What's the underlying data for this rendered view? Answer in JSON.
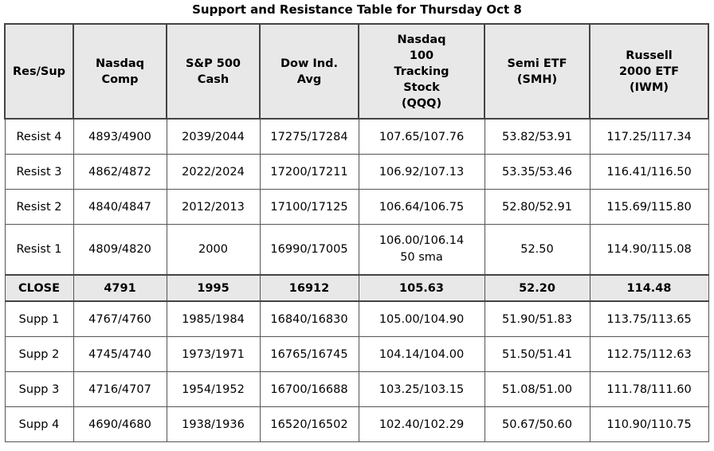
{
  "title": "Support and Resistance Table for Thursday Oct 8",
  "headers": [
    [
      "Res/Sup"
    ],
    [
      "Nasdaq",
      "Comp"
    ],
    [
      "S&P 500",
      "Cash"
    ],
    [
      "Dow Ind.",
      "Avg"
    ],
    [
      "Nasdaq",
      "100",
      "Tracking",
      "Stock",
      "(QQQ)"
    ],
    [
      "Semi ETF",
      "(SMH)"
    ],
    [
      "Russell",
      "2000 ETF",
      "(IWM)"
    ]
  ],
  "rows": [
    [
      "Resist 4",
      "4893/4900",
      "2039/2044",
      "17275/17284",
      "107.65/107.76",
      "53.82/53.91",
      "117.25/117.34"
    ],
    [
      "Resist 3",
      "4862/4872",
      "2022/2024",
      "17200/17211",
      "106.92/107.13",
      "53.35/53.46",
      "116.41/116.50"
    ],
    [
      "Resist 2",
      "4840/4847",
      "2012/2013",
      "17100/17125",
      "106.64/106.75",
      "52.80/52.91",
      "115.69/115.80"
    ],
    [
      "Resist 1",
      "4809/4820",
      "2000",
      "16990/17005",
      "106.00/106.14",
      "52.50",
      "114.90/115.08"
    ],
    [
      "CLOSE",
      "4791",
      "1995",
      "16912",
      "105.63",
      "52.20",
      "114.48"
    ],
    [
      "Supp 1",
      "4767/4760",
      "1985/1984",
      "16840/16830",
      "105.00/104.90",
      "51.90/51.83",
      "113.75/113.65"
    ],
    [
      "Supp 2",
      "4745/4740",
      "1973/1971",
      "16765/16745",
      "104.14/104.00",
      "51.50/51.41",
      "112.75/112.63"
    ],
    [
      "Supp 3",
      "4716/4707",
      "1954/1952",
      "16700/16688",
      "103.25/103.15",
      "51.08/51.00",
      "111.78/111.60"
    ],
    [
      "Supp 4",
      "4690/4680",
      "1938/1936",
      "16520/16502",
      "102.40/102.29",
      "50.67/50.60",
      "110.90/110.75"
    ]
  ],
  "resist1_qqq_note": "50 sma"
}
